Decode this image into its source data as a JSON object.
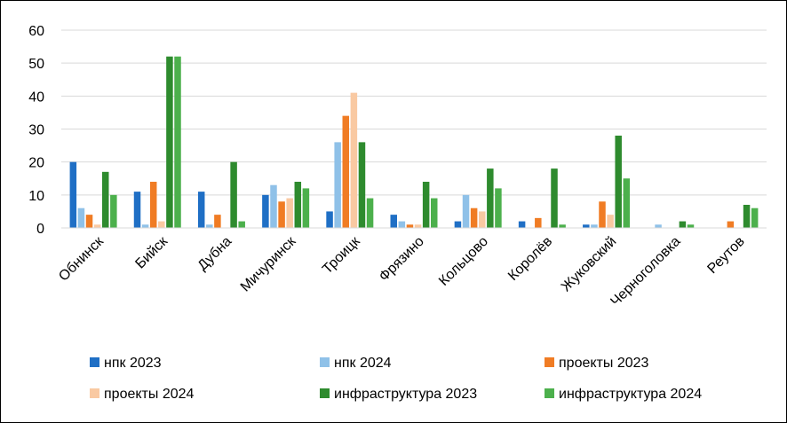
{
  "chart_data": {
    "type": "bar",
    "title": "",
    "xlabel": "",
    "ylabel": "",
    "ylim": [
      0,
      60
    ],
    "yticks": [
      0,
      10,
      20,
      30,
      40,
      50,
      60
    ],
    "grid": true,
    "legend_position": "bottom",
    "categories": [
      "Обнинск",
      "Бийск",
      "Дубна",
      "Мичуринск",
      "Троицк",
      "Фрязино",
      "Кольцово",
      "Королёв",
      "Жуковский",
      "Черноголовка",
      "Реутов"
    ],
    "series": [
      {
        "name": "нпк 2023",
        "color": "#1f6fc5",
        "values": [
          20,
          11,
          11,
          10,
          5,
          4,
          2,
          2,
          1,
          0,
          0
        ]
      },
      {
        "name": "нпк 2024",
        "color": "#8fc1e8",
        "values": [
          6,
          1,
          1,
          13,
          26,
          2,
          10,
          0,
          1,
          1,
          0
        ]
      },
      {
        "name": "проекты 2023",
        "color": "#f07c24",
        "values": [
          4,
          14,
          4,
          8,
          34,
          1,
          6,
          3,
          8,
          0,
          2
        ]
      },
      {
        "name": "проекты 2024",
        "color": "#f9c9a2",
        "values": [
          1,
          2,
          0,
          9,
          41,
          1,
          5,
          0,
          4,
          0,
          0
        ]
      },
      {
        "name": "инфраструктура 2023",
        "color": "#2e8b2e",
        "values": [
          17,
          52,
          20,
          14,
          26,
          14,
          18,
          18,
          28,
          2,
          7
        ]
      },
      {
        "name": "инфраструктура 2024",
        "color": "#4cb04c",
        "values": [
          10,
          52,
          2,
          12,
          9,
          9,
          12,
          1,
          15,
          1,
          6
        ]
      }
    ]
  }
}
